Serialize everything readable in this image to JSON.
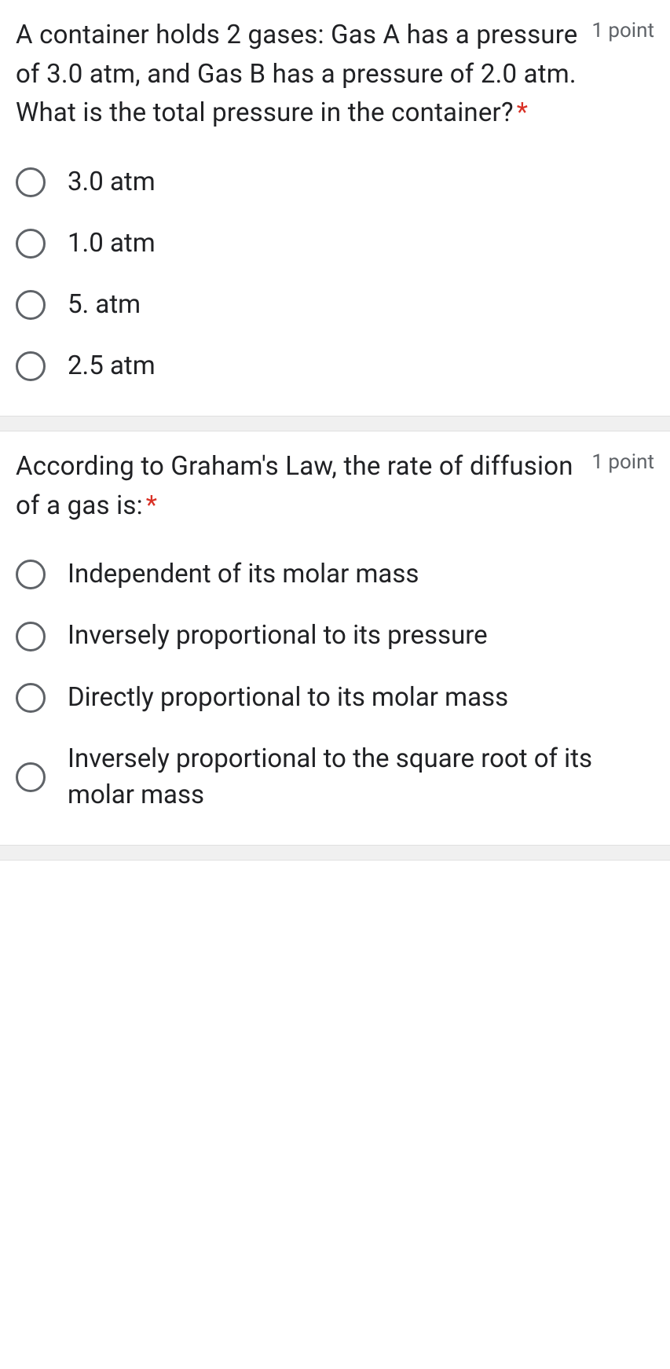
{
  "questions": [
    {
      "text": "  A container holds 2 gases: Gas A has a pressure of 3.0 atm, and Gas B has a pressure of 2.0 atm. What is the total pressure in the container?",
      "required": "*",
      "points": "1 point",
      "options": [
        "3.0 atm",
        "1.0 atm",
        "5. atm",
        "2.5 atm"
      ]
    },
    {
      "text": "  According to Graham's Law, the rate of diffusion of a gas is:",
      "required": "*",
      "points": "1 point",
      "options": [
        "Independent of its molar mass",
        "Inversely proportional to its pressure",
        "Directly proportional to its molar mass",
        "Inversely proportional to the square root of its molar mass"
      ]
    }
  ]
}
